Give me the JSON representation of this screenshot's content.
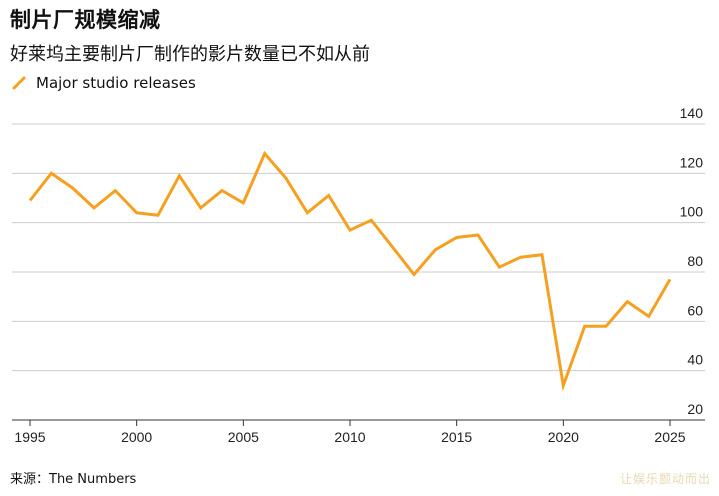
{
  "title": "制片厂规模缩减",
  "subtitle": "好莱坞主要制片厂制作的影片数量已不如从前",
  "source": "来源：The Numbers",
  "watermark": "让娱乐颤动而出",
  "colors": {
    "line": "#f5a020",
    "grid": "#cccccc",
    "axis": "#333333"
  },
  "chart_data": {
    "type": "line",
    "series": [
      {
        "name": "Major studio releases",
        "x": [
          1995,
          1996,
          1997,
          1998,
          1999,
          2000,
          2001,
          2002,
          2003,
          2004,
          2005,
          2006,
          2007,
          2008,
          2009,
          2010,
          2011,
          2012,
          2013,
          2014,
          2015,
          2016,
          2017,
          2018,
          2019,
          2020,
          2021,
          2022,
          2023,
          2024,
          2025
        ],
        "values": [
          109,
          120,
          114,
          106,
          113,
          104,
          103,
          119,
          106,
          113,
          108,
          128,
          118,
          104,
          111,
          97,
          101,
          90,
          79,
          89,
          94,
          95,
          82,
          86,
          87,
          34,
          58,
          58,
          68,
          62,
          77
        ]
      }
    ],
    "xticks": [
      "1995",
      "2000",
      "2005",
      "2010",
      "2015",
      "2020",
      "2025"
    ],
    "yticks": [
      "20",
      "40",
      "60",
      "80",
      "100",
      "120",
      "140"
    ],
    "xlim": [
      1995,
      2025
    ],
    "ylim": [
      20,
      140
    ],
    "grid": true,
    "legend_position": "top-left",
    "y_axis_side": "right"
  }
}
